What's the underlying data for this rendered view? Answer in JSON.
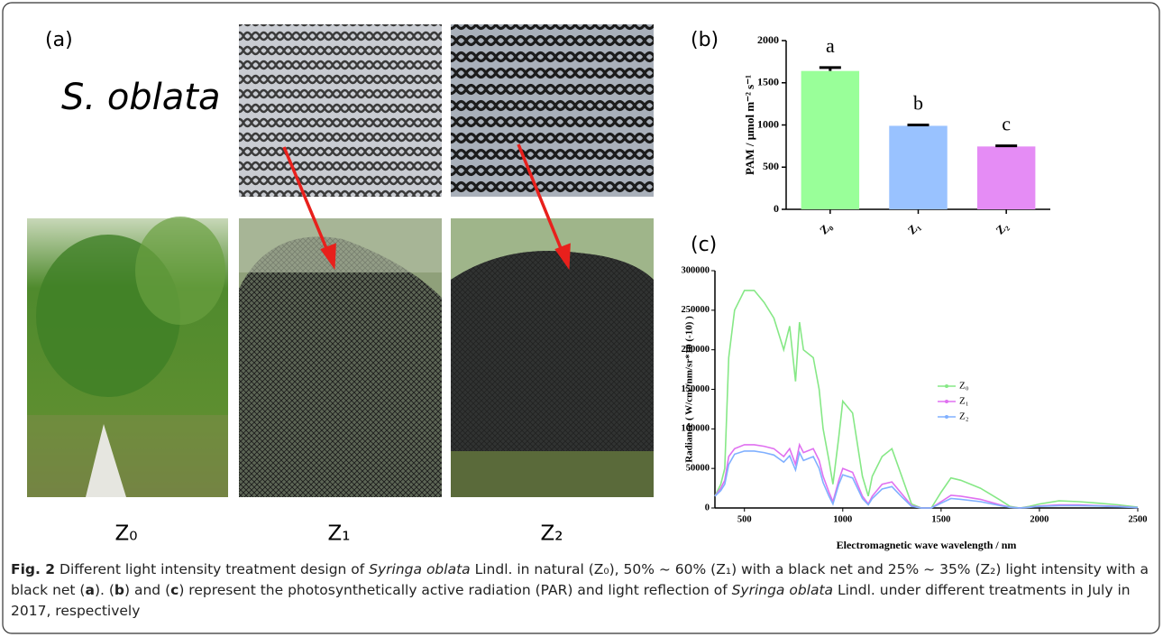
{
  "figure": {
    "panel_a": "(a)",
    "panel_b": "(b)",
    "panel_c": "(c)",
    "species": "S. oblata",
    "photo_labels": [
      "Z₀",
      "Z₁",
      "Z₂"
    ]
  },
  "chart_data": [
    {
      "type": "bar",
      "ylabel": "PAM / μmol m⁻² s⁻¹",
      "categories": [
        "Z₀",
        "Z₁",
        "Z₂"
      ],
      "values": [
        1640,
        990,
        745
      ],
      "errors": [
        40,
        10,
        8
      ],
      "colors": [
        "#99ff99",
        "#99c2ff",
        "#e58cf5"
      ],
      "significance_labels": [
        "a",
        "b",
        "c"
      ],
      "ylim": [
        0,
        2000
      ],
      "yticks": [
        0,
        500,
        1000,
        1500,
        2000
      ]
    },
    {
      "type": "line",
      "xlabel": "Electromagnetic wave wavelength / nm",
      "ylabel": "Radiance ( W/cm²/nm/sr*10 (-10) )",
      "x": [
        350,
        380,
        400,
        420,
        450,
        500,
        550,
        600,
        650,
        700,
        730,
        760,
        780,
        800,
        850,
        880,
        900,
        930,
        950,
        980,
        1000,
        1050,
        1100,
        1130,
        1150,
        1200,
        1250,
        1300,
        1350,
        1400,
        1450,
        1500,
        1550,
        1600,
        1700,
        1800,
        1850,
        1900,
        1950,
        2000,
        2100,
        2200,
        2300,
        2400,
        2500
      ],
      "series": [
        {
          "name": "Z₀",
          "color": "#86e886",
          "values": [
            15000,
            30000,
            50000,
            190000,
            250000,
            275000,
            275000,
            260000,
            240000,
            200000,
            230000,
            160000,
            235000,
            200000,
            190000,
            150000,
            100000,
            60000,
            30000,
            90000,
            135000,
            120000,
            40000,
            15000,
            40000,
            65000,
            75000,
            40000,
            5000,
            0,
            0,
            20000,
            38000,
            35000,
            25000,
            10000,
            2000,
            0,
            2000,
            5000,
            9000,
            8000,
            6000,
            4000,
            1000
          ]
        },
        {
          "name": "Z₁",
          "color": "#e070f0",
          "values": [
            15000,
            25000,
            35000,
            65000,
            75000,
            80000,
            80000,
            78000,
            75000,
            65000,
            75000,
            55000,
            80000,
            70000,
            75000,
            60000,
            40000,
            20000,
            8000,
            35000,
            50000,
            45000,
            15000,
            5000,
            15000,
            30000,
            33000,
            18000,
            3000,
            0,
            0,
            8000,
            16000,
            15000,
            11000,
            4000,
            1000,
            0,
            1000,
            2500,
            4000,
            4000,
            3000,
            2000,
            500
          ]
        },
        {
          "name": "Z₂",
          "color": "#80b0ff",
          "values": [
            15000,
            22000,
            30000,
            55000,
            68000,
            72000,
            72000,
            70000,
            67000,
            58000,
            66000,
            48000,
            70000,
            60000,
            65000,
            50000,
            32000,
            15000,
            5000,
            30000,
            42000,
            38000,
            12000,
            4000,
            12000,
            24000,
            27000,
            14000,
            2000,
            0,
            0,
            6000,
            12000,
            11000,
            8000,
            3000,
            800,
            0,
            800,
            2000,
            3000,
            3000,
            2500,
            1500,
            400
          ]
        }
      ],
      "xlim": [
        350,
        2500
      ],
      "xticks": [
        500,
        1000,
        1500,
        2000,
        2500
      ],
      "ylim": [
        0,
        300000
      ],
      "yticks": [
        0,
        50000,
        100000,
        150000,
        200000,
        250000,
        300000
      ]
    }
  ],
  "caption": {
    "runs": [
      "Fig. 2",
      " Different light intensity treatment design of ",
      "Syringa oblata",
      " Lindl. in natural (Z₀), 50% ~ 60% (Z₁) with a black net and 25% ~ 35% (Z₂) light intensity with a black net (",
      "a",
      "). (",
      "b",
      ") and (",
      "c",
      ") represent the photosynthetically active radiation (PAR) and light reflection of ",
      "Syringa oblata",
      " Lindl. under different treatments in July in 2017, respectively"
    ]
  }
}
